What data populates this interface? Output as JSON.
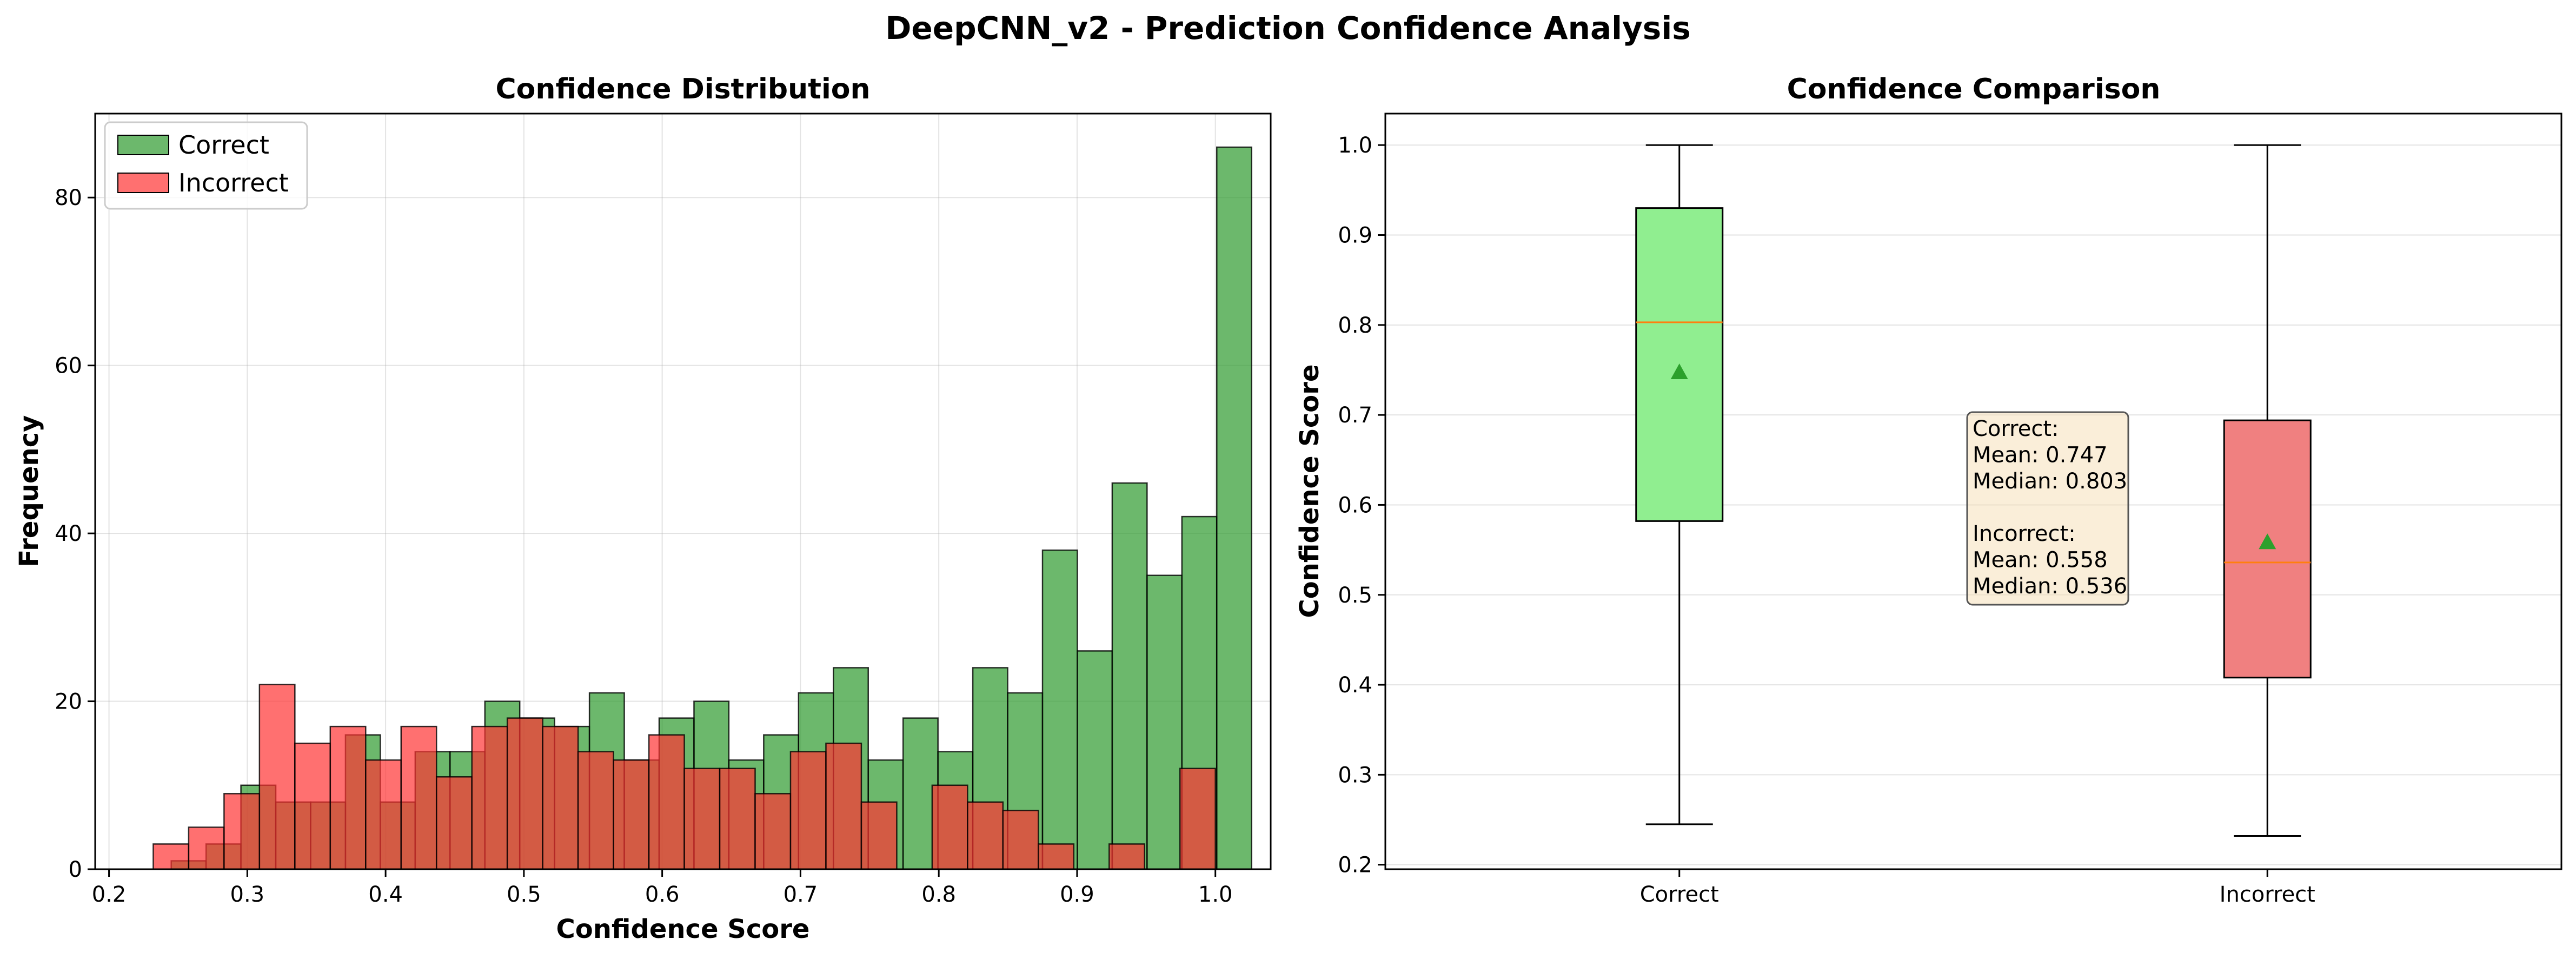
{
  "chart_data": [
    {
      "type": "histogram",
      "title": "Confidence Distribution",
      "xlabel": "Confidence Score",
      "ylabel": "Frequency",
      "xlim": [
        0.19,
        1.04
      ],
      "ylim": [
        0,
        90
      ],
      "xticks": [
        0.2,
        0.3,
        0.4,
        0.5,
        0.6,
        0.7,
        0.8,
        0.9,
        1.0
      ],
      "xtick_labels": [
        "0.2",
        "0.3",
        "0.4",
        "0.5",
        "0.6",
        "0.7",
        "0.8",
        "0.9",
        "1.0"
      ],
      "yticks": [
        0,
        20,
        40,
        60,
        80
      ],
      "ytick_labels": [
        "0",
        "20",
        "40",
        "60",
        "80"
      ],
      "grid": true,
      "legend_position": "upper left",
      "series": [
        {
          "name": "Correct",
          "color": "#2e9a2e",
          "bin_start": 0.245,
          "bin_width": 0.0252,
          "values": [
            1,
            3,
            10,
            8,
            8,
            16,
            8,
            14,
            14,
            20,
            18,
            17,
            21,
            13,
            18,
            20,
            13,
            16,
            21,
            24,
            13,
            18,
            14,
            24,
            21,
            38,
            26,
            46,
            35,
            42,
            86
          ]
        },
        {
          "name": "Incorrect",
          "color": "#ff3333",
          "bin_start": 0.232,
          "bin_width": 0.0256,
          "values": [
            3,
            5,
            9,
            22,
            15,
            17,
            13,
            17,
            11,
            17,
            18,
            17,
            14,
            13,
            16,
            12,
            12,
            9,
            14,
            15,
            8,
            0,
            10,
            8,
            7,
            3,
            0,
            3,
            0,
            12
          ]
        }
      ]
    },
    {
      "type": "box",
      "title": "Confidence Comparison",
      "ylabel": "Confidence Score",
      "ylim": [
        0.195,
        1.035
      ],
      "yticks": [
        0.2,
        0.3,
        0.4,
        0.5,
        0.6,
        0.7,
        0.8,
        0.9,
        1.0
      ],
      "ytick_labels": [
        "0.2",
        "0.3",
        "0.4",
        "0.5",
        "0.6",
        "0.7",
        "0.8",
        "0.9",
        "1.0"
      ],
      "categories": [
        "Correct",
        "Incorrect"
      ],
      "grid": true,
      "boxes": [
        {
          "name": "Correct",
          "color": "#90ee90",
          "whisker_low": 0.245,
          "q1": 0.582,
          "median": 0.803,
          "q3": 0.93,
          "whisker_high": 1.0,
          "mean": 0.747
        },
        {
          "name": "Incorrect",
          "color": "#f08080",
          "whisker_low": 0.232,
          "q1": 0.408,
          "median": 0.536,
          "q3": 0.694,
          "whisker_high": 1.0,
          "mean": 0.558
        }
      ],
      "annotation": [
        "Correct:",
        "Mean: 0.747",
        "Median: 0.803",
        "",
        "Incorrect:",
        "Mean: 0.558",
        "Median: 0.536"
      ]
    }
  ],
  "suptitle": "DeepCNN_v2 - Prediction Confidence Analysis"
}
